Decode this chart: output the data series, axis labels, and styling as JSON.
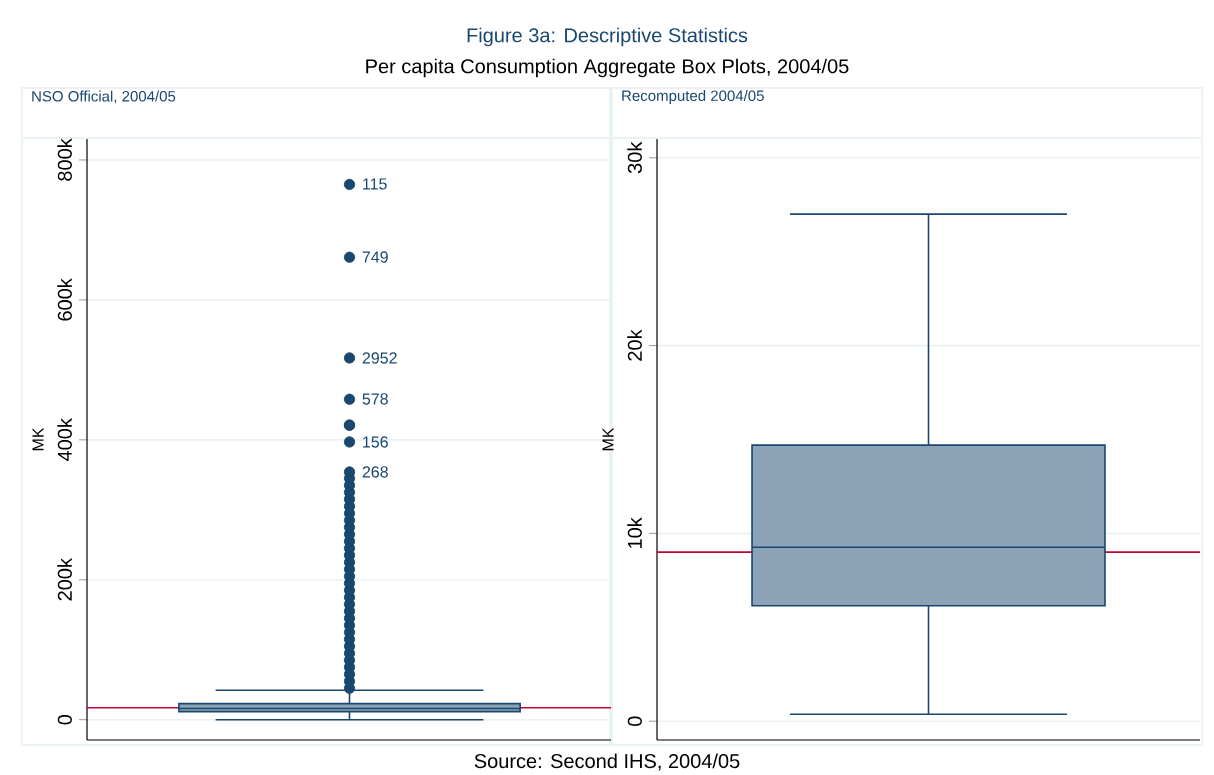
{
  "chart_data": [
    {
      "type": "box",
      "title": "Figure 3a: Descriptive Statistics",
      "subtitle": "Per capita Consumption Aggregate Box Plots, 2004/05",
      "ylabel": "MK",
      "categories": [
        null
      ],
      "color": "#1a476f",
      "marker": "circle",
      "grid": "y",
      "ylim": [
        -29000,
        830000
      ],
      "yticks": [
        0,
        {
          "value": 200000,
          "label": "200k"
        },
        {
          "value": 400000,
          "label": "400k"
        },
        {
          "value": 600000,
          "label": "600k"
        },
        {
          "value": 800000,
          "label": "800k"
        }
      ],
      "boxes": [
        {
          "low": 0,
          "q1": 11500,
          "median": 16000,
          "q3": 23000,
          "high": 42000,
          "outliers": [
            45000,
            55000,
            65000,
            75000,
            85000,
            95000,
            105000,
            115000,
            125000,
            135000,
            145000,
            155000,
            165000,
            175000,
            185000,
            195000,
            205000,
            215000,
            225000,
            235000,
            245000,
            255000,
            265000,
            275000,
            285000,
            295000,
            305000,
            315000,
            325000,
            335000,
            345000,
            354000,
            397000,
            421000,
            421000,
            458000,
            517000,
            661000,
            765000
          ]
        }
      ],
      "ref_lines": [
        {
          "axis": "y",
          "value": 17000,
          "color": "#c10534"
        }
      ],
      "annotations": [
        "NSO Official, 2004/05",
        "Source: Second IHS, 2004/05",
        "115",
        "749",
        "2952",
        "578",
        "156",
        "268"
      ]
    },
    {
      "type": "box",
      "title": "Recomputed 2004/05",
      "ylabel": "MK",
      "categories": [
        null
      ],
      "color": "#1a476f",
      "grid": "y",
      "ylim": [
        -1000,
        31000
      ],
      "yticks": [
        0,
        {
          "value": 10000,
          "label": "10k"
        },
        {
          "value": 20000,
          "label": "20k"
        },
        {
          "value": 30000,
          "label": "30k"
        }
      ],
      "boxes": [
        {
          "low": 370,
          "q1": 6150,
          "median": 9260,
          "q3": 14700,
          "high": 27000
        }
      ],
      "ref_lines": [
        {
          "axis": "y",
          "value": 9000,
          "color": "#c10534"
        }
      ]
    }
  ]
}
